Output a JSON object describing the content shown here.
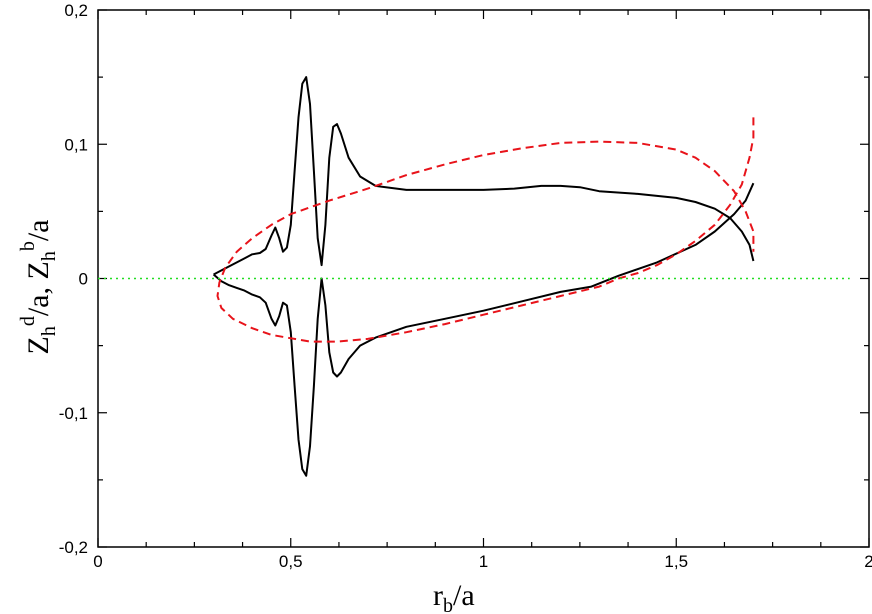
{
  "chart_data": {
    "type": "line",
    "title": "",
    "xlabel": "r_b/a",
    "ylabel": "Z_h^d/a, Z_h^b/a",
    "xlim": [
      0,
      2
    ],
    "ylim": [
      -0.2,
      0.2
    ],
    "x_ticks": [
      0,
      0.5,
      1,
      1.5,
      2
    ],
    "y_ticks": [
      -0.2,
      -0.1,
      0,
      0.1,
      0.2
    ],
    "x_tick_labels": [
      "0",
      "0,5",
      "1",
      "1,5",
      "2"
    ],
    "y_tick_labels": [
      "-0,2",
      "-0,1",
      "0",
      "0,1",
      "0,2"
    ],
    "grid": false,
    "series": [
      {
        "style": "solid",
        "color": "#000000",
        "points": [
          [
            0.3,
            0.003
          ],
          [
            0.32,
            0.006
          ],
          [
            0.34,
            0.009
          ],
          [
            0.36,
            0.012
          ],
          [
            0.38,
            0.015
          ],
          [
            0.4,
            0.018
          ],
          [
            0.42,
            0.019
          ],
          [
            0.435,
            0.022
          ],
          [
            0.45,
            0.032
          ],
          [
            0.46,
            0.038
          ],
          [
            0.47,
            0.03
          ],
          [
            0.48,
            0.02
          ],
          [
            0.49,
            0.023
          ],
          [
            0.5,
            0.04
          ],
          [
            0.51,
            0.08
          ],
          [
            0.52,
            0.12
          ],
          [
            0.53,
            0.145
          ],
          [
            0.54,
            0.15
          ],
          [
            0.55,
            0.13
          ],
          [
            0.56,
            0.08
          ],
          [
            0.57,
            0.03
          ],
          [
            0.58,
            0.01
          ],
          [
            0.59,
            0.04
          ],
          [
            0.6,
            0.09
          ],
          [
            0.61,
            0.113
          ],
          [
            0.62,
            0.115
          ],
          [
            0.63,
            0.108
          ],
          [
            0.65,
            0.09
          ],
          [
            0.68,
            0.076
          ],
          [
            0.72,
            0.069
          ],
          [
            0.8,
            0.066
          ],
          [
            0.9,
            0.066
          ],
          [
            1.0,
            0.066
          ],
          [
            1.08,
            0.067
          ],
          [
            1.15,
            0.069
          ],
          [
            1.2,
            0.069
          ],
          [
            1.25,
            0.068
          ],
          [
            1.3,
            0.065
          ],
          [
            1.4,
            0.063
          ],
          [
            1.5,
            0.06
          ],
          [
            1.55,
            0.057
          ],
          [
            1.6,
            0.052
          ],
          [
            1.64,
            0.045
          ],
          [
            1.67,
            0.035
          ],
          [
            1.69,
            0.025
          ],
          [
            1.7,
            0.013
          ]
        ]
      },
      {
        "style": "solid",
        "color": "#000000",
        "points": [
          [
            0.3,
            0.003
          ],
          [
            0.32,
            -0.002
          ],
          [
            0.34,
            -0.005
          ],
          [
            0.36,
            -0.007
          ],
          [
            0.38,
            -0.009
          ],
          [
            0.4,
            -0.012
          ],
          [
            0.42,
            -0.014
          ],
          [
            0.435,
            -0.018
          ],
          [
            0.45,
            -0.03
          ],
          [
            0.46,
            -0.035
          ],
          [
            0.47,
            -0.028
          ],
          [
            0.48,
            -0.018
          ],
          [
            0.49,
            -0.02
          ],
          [
            0.5,
            -0.04
          ],
          [
            0.51,
            -0.08
          ],
          [
            0.52,
            -0.12
          ],
          [
            0.53,
            -0.142
          ],
          [
            0.54,
            -0.147
          ],
          [
            0.55,
            -0.125
          ],
          [
            0.56,
            -0.08
          ],
          [
            0.57,
            -0.03
          ],
          [
            0.58,
            0.0
          ],
          [
            0.59,
            -0.02
          ],
          [
            0.6,
            -0.055
          ],
          [
            0.61,
            -0.07
          ],
          [
            0.62,
            -0.073
          ],
          [
            0.63,
            -0.07
          ],
          [
            0.65,
            -0.06
          ],
          [
            0.68,
            -0.05
          ],
          [
            0.72,
            -0.044
          ],
          [
            0.8,
            -0.036
          ],
          [
            0.9,
            -0.03
          ],
          [
            1.0,
            -0.024
          ],
          [
            1.1,
            -0.017
          ],
          [
            1.2,
            -0.01
          ],
          [
            1.28,
            -0.006
          ],
          [
            1.35,
            0.002
          ],
          [
            1.45,
            0.012
          ],
          [
            1.55,
            0.025
          ],
          [
            1.6,
            0.035
          ],
          [
            1.65,
            0.048
          ],
          [
            1.68,
            0.058
          ],
          [
            1.7,
            0.071
          ]
        ]
      },
      {
        "style": "dashed",
        "color": "#e8131a",
        "points": [
          [
            1.7,
            0.12
          ],
          [
            1.7,
            0.105
          ],
          [
            1.69,
            0.09
          ],
          [
            1.67,
            0.07
          ],
          [
            1.64,
            0.055
          ],
          [
            1.6,
            0.04
          ],
          [
            1.55,
            0.028
          ],
          [
            1.5,
            0.018
          ],
          [
            1.45,
            0.01
          ],
          [
            1.4,
            0.004
          ],
          [
            1.35,
            0.0
          ],
          [
            1.3,
            -0.006
          ],
          [
            1.2,
            -0.013
          ],
          [
            1.1,
            -0.02
          ],
          [
            1.0,
            -0.027
          ],
          [
            0.9,
            -0.034
          ],
          [
            0.8,
            -0.04
          ],
          [
            0.7,
            -0.045
          ],
          [
            0.62,
            -0.047
          ],
          [
            0.55,
            -0.047
          ],
          [
            0.45,
            -0.042
          ],
          [
            0.4,
            -0.037
          ],
          [
            0.35,
            -0.03
          ],
          [
            0.32,
            -0.022
          ],
          [
            0.31,
            -0.013
          ],
          [
            0.315,
            -0.003
          ],
          [
            0.33,
            0.008
          ],
          [
            0.36,
            0.02
          ],
          [
            0.4,
            0.03
          ],
          [
            0.45,
            0.04
          ],
          [
            0.5,
            0.048
          ],
          [
            0.6,
            0.058
          ],
          [
            0.7,
            0.067
          ],
          [
            0.8,
            0.077
          ],
          [
            0.9,
            0.085
          ],
          [
            1.0,
            0.092
          ],
          [
            1.1,
            0.097
          ],
          [
            1.2,
            0.101
          ],
          [
            1.3,
            0.102
          ],
          [
            1.4,
            0.101
          ],
          [
            1.5,
            0.096
          ],
          [
            1.55,
            0.09
          ],
          [
            1.6,
            0.08
          ],
          [
            1.65,
            0.065
          ],
          [
            1.68,
            0.05
          ],
          [
            1.7,
            0.035
          ],
          [
            1.7,
            0.02
          ]
        ]
      },
      {
        "style": "dotted",
        "color": "#22dd22",
        "points": [
          [
            0,
            0
          ],
          [
            1.95,
            0
          ]
        ]
      }
    ]
  }
}
